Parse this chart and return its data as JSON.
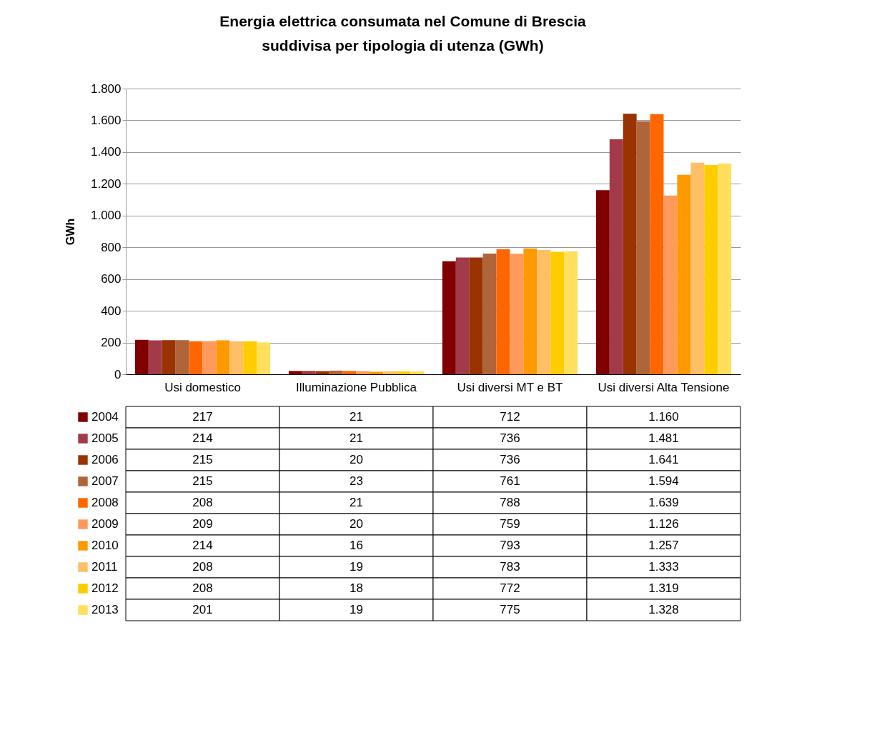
{
  "chart_data": {
    "type": "bar",
    "title": "Energia elettrica consumata nel Comune di Brescia\nsuddivisa per tipologia di utenza (GWh)",
    "ylabel": "GWh",
    "categories": [
      "Usi domestico",
      "Illuminazione Pubblica",
      "Usi diversi  MT e BT",
      "Usi diversi Alta Tensione"
    ],
    "series": [
      {
        "name": "2004",
        "color": "#800000",
        "values": [
          217,
          21,
          712,
          1160
        ],
        "value_labels": [
          "217",
          "21",
          "712",
          "1.160"
        ]
      },
      {
        "name": "2005",
        "color": "#a33a4a",
        "values": [
          214,
          21,
          736,
          1481
        ],
        "value_labels": [
          "214",
          "21",
          "736",
          "1.481"
        ]
      },
      {
        "name": "2006",
        "color": "#993300",
        "values": [
          215,
          20,
          736,
          1641
        ],
        "value_labels": [
          "215",
          "20",
          "736",
          "1.641"
        ]
      },
      {
        "name": "2007",
        "color": "#b0643a",
        "values": [
          215,
          23,
          761,
          1594
        ],
        "value_labels": [
          "215",
          "23",
          "761",
          "1.594"
        ]
      },
      {
        "name": "2008",
        "color": "#ff6600",
        "values": [
          208,
          21,
          788,
          1639
        ],
        "value_labels": [
          "208",
          "21",
          "788",
          "1.639"
        ]
      },
      {
        "name": "2009",
        "color": "#ff9a5c",
        "values": [
          209,
          20,
          759,
          1126
        ],
        "value_labels": [
          "209",
          "20",
          "759",
          "1.126"
        ]
      },
      {
        "name": "2010",
        "color": "#ff9900",
        "values": [
          214,
          16,
          793,
          1257
        ],
        "value_labels": [
          "214",
          "16",
          "793",
          "1.257"
        ]
      },
      {
        "name": "2011",
        "color": "#ffbf66",
        "values": [
          208,
          19,
          783,
          1333
        ],
        "value_labels": [
          "208",
          "19",
          "783",
          "1.333"
        ]
      },
      {
        "name": "2012",
        "color": "#ffcc00",
        "values": [
          208,
          18,
          772,
          1319
        ],
        "value_labels": [
          "208",
          "18",
          "772",
          "1.319"
        ]
      },
      {
        "name": "2013",
        "color": "#ffdf5c",
        "values": [
          201,
          19,
          775,
          1328
        ],
        "value_labels": [
          "201",
          "19",
          "775",
          "1.328"
        ]
      }
    ],
    "ylim": [
      0,
      1800
    ],
    "yticks": [
      0,
      200,
      400,
      600,
      800,
      {
        "value": 1000,
        "label": "1.000"
      },
      {
        "value": 1200,
        "label": "1.200"
      },
      {
        "value": 1400,
        "label": "1.400"
      },
      {
        "value": 1600,
        "label": "1.600"
      },
      {
        "value": 1800,
        "label": "1.800"
      }
    ],
    "grid": "y",
    "legend": "bottom"
  }
}
